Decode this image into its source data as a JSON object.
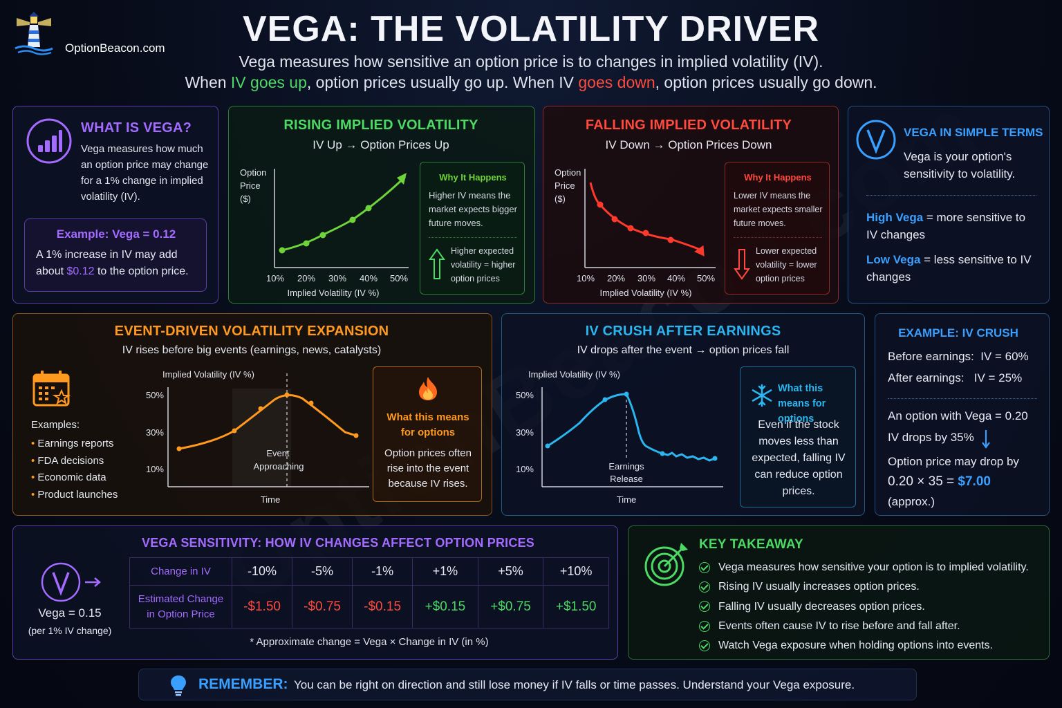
{
  "brand": {
    "logo_text": "OptionBeacon.com"
  },
  "header": {
    "title": "VEGA: THE VOLATILITY DRIVER",
    "line1": "Vega measures how sensitive an option price is to changes in implied volatility (IV).",
    "line2_a": "When ",
    "line2_b": "IV goes up",
    "line2_c": ", option prices usually go up. When IV ",
    "line2_d": "goes down",
    "line2_e": ", option prices usually go down."
  },
  "what_is_vega": {
    "title": "WHAT IS VEGA?",
    "body": "Vega measures how much an option price may change for a 1% change in implied volatility (IV).",
    "example_title": "Example: Vega = 0.12",
    "example_a": "A 1% increase in IV may add about ",
    "example_amount": "$0.12",
    "example_b": " to the option price."
  },
  "rising": {
    "title": "RISING IMPLIED VOLATILITY",
    "subtitle": "IV Up → Option Prices Up",
    "y_label": [
      "Option",
      "Price",
      "($)"
    ],
    "x_label": "Implied Volatility (IV %)",
    "ticks": [
      "10%",
      "20%",
      "30%",
      "40%",
      "50%"
    ],
    "why_title": "Why It Happens",
    "why_body": "Higher IV means the market expects bigger future moves.",
    "why_note": "Higher expected volatility = higher option prices"
  },
  "falling": {
    "title": "FALLING IMPLIED VOLATILITY",
    "subtitle": "IV Down → Option Prices Down",
    "y_label": [
      "Option",
      "Price",
      "($)"
    ],
    "x_label": "Implied Volatility (IV %)",
    "ticks": [
      "10%",
      "20%",
      "30%",
      "40%",
      "50%"
    ],
    "why_title": "Why It Happens",
    "why_body": "Lower IV means the market expects smaller future moves.",
    "why_note": "Lower expected volatility = lower option prices"
  },
  "simple_terms": {
    "title": "VEGA IN SIMPLE TERMS",
    "body": "Vega is your option's sensitivity to volatility.",
    "high_label": "High Vega",
    "high_text": " = more sensitive to IV changes",
    "low_label": "Low Vega",
    "low_text": " = less sensitive to IV changes"
  },
  "event": {
    "title": "EVENT-DRIVEN VOLATILITY EXPANSION",
    "subtitle": "IV rises before big events (earnings, news, catalysts)",
    "examples_label": "Examples:",
    "examples": [
      "Earnings reports",
      "FDA decisions",
      "Economic data",
      "Product launches"
    ],
    "y_label": "Implied Volatility (IV %)",
    "y_ticks": [
      "50%",
      "30%",
      "10%"
    ],
    "x_label": "Time",
    "marker_label": [
      "Event",
      "Approaching"
    ],
    "means_title": "What this means for options",
    "means_body": "Option prices often rise into the event because IV rises."
  },
  "crush": {
    "title": "IV CRUSH AFTER EARNINGS",
    "subtitle": "IV drops after the event → option prices fall",
    "y_label": "Implied Volatility (IV %)",
    "y_ticks": [
      "50%",
      "30%",
      "10%"
    ],
    "x_label": "Time",
    "marker_label": [
      "Earnings",
      "Release"
    ],
    "means_title": "What this means for options",
    "means_body": "Even if the stock moves less than expected, falling IV can reduce option prices."
  },
  "crush_example": {
    "title": "EXAMPLE: IV CRUSH",
    "before": "Before earnings:  IV = 60%",
    "after": "After earnings:   IV = 25%",
    "line1": "An option with Vega = 0.20",
    "line2": "IV drops by 35%",
    "line3": "Option price may drop by",
    "line4": "0.20 × 35 = ",
    "amount": "$7.00",
    "approx": "(approx.)"
  },
  "sensitivity": {
    "title": "VEGA SENSITIVITY: HOW IV CHANGES AFFECT OPTION PRICES",
    "vega_value": "Vega = 0.15",
    "vega_note": "(per 1% IV change)",
    "row1_header": "Change in IV",
    "row2_header": "Estimated Change in Option Price",
    "changes": [
      "-10%",
      "-5%",
      "-1%",
      "+1%",
      "+5%",
      "+10%"
    ],
    "prices": [
      "-$1.50",
      "-$0.75",
      "-$0.15",
      "+$0.15",
      "+$0.75",
      "+$1.50"
    ],
    "footnote": "* Approximate change = Vega × Change in IV (in %)"
  },
  "takeaway": {
    "title": "KEY TAKEAWAY",
    "items": [
      "Vega measures how sensitive your option is to implied volatility.",
      "Rising IV usually increases option prices.",
      "Falling IV usually decreases option prices.",
      "Events often cause IV to rise before and fall after.",
      "Watch Vega exposure when holding options into events."
    ]
  },
  "remember": {
    "label": "REMEMBER:",
    "text": "You can be right on direction and still lose money if IV falls or time passes. Understand your Vega exposure."
  },
  "watermark": "OptionBeacon.com",
  "colors": {
    "purple": "#a36bff",
    "green": "#4cd964",
    "red": "#ff4a3d",
    "blue": "#3aa0ff",
    "orange": "#ff9a1f",
    "cyan": "#2bb6f0"
  }
}
